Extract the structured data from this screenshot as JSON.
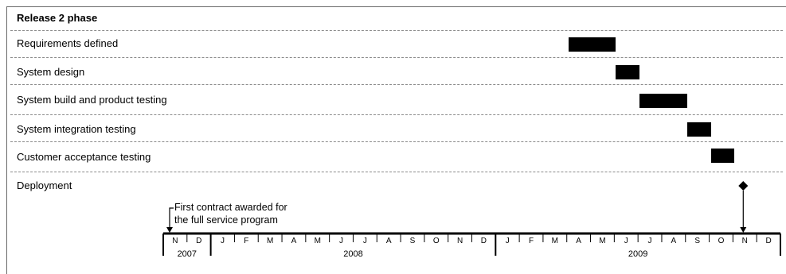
{
  "title": "Release 2 phase",
  "tasks": [
    {
      "label": "Requirements defined",
      "start": "2009-04",
      "end": "2009-06"
    },
    {
      "label": "System design",
      "start": "2009-06",
      "end": "2009-07"
    },
    {
      "label": "System build and product testing",
      "start": "2009-07",
      "end": "2009-09"
    },
    {
      "label": "System integration testing",
      "start": "2009-09",
      "end": "2009-10"
    },
    {
      "label": "Customer acceptance testing",
      "start": "2009-10",
      "end": "2009-11"
    }
  ],
  "milestone": {
    "label": "Deployment",
    "date": "2009-11"
  },
  "annotation": {
    "line1": "First contract awarded for",
    "line2": "the full service program",
    "date": "2007-11"
  },
  "timeline": {
    "months": [
      "N",
      "D",
      "J",
      "F",
      "M",
      "A",
      "M",
      "J",
      "J",
      "A",
      "S",
      "O",
      "N",
      "D",
      "J",
      "F",
      "M",
      "A",
      "M",
      "J",
      "J",
      "A",
      "S",
      "O",
      "N",
      "D"
    ],
    "years": [
      {
        "label": "2007",
        "first": 0,
        "last": 1
      },
      {
        "label": "2008",
        "first": 2,
        "last": 13
      },
      {
        "label": "2009",
        "first": 14,
        "last": 25
      }
    ]
  }
}
